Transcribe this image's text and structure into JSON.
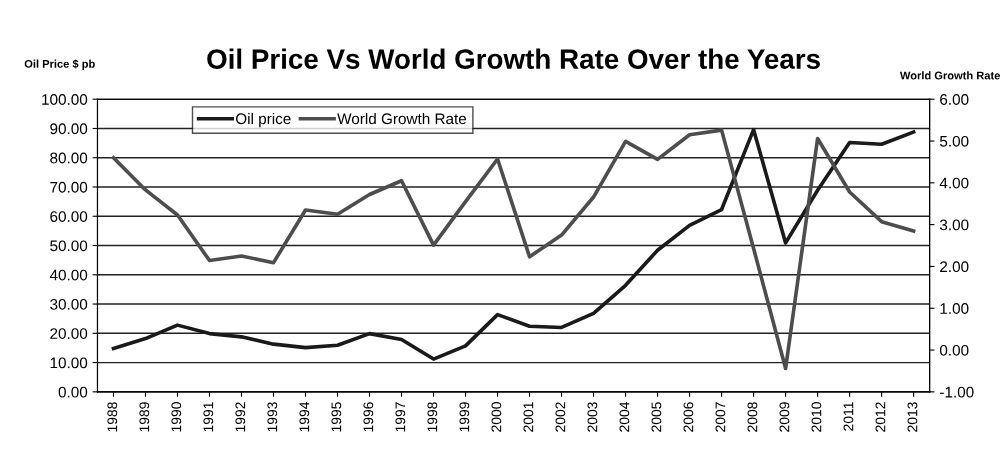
{
  "chart_data": {
    "type": "line",
    "title": "Oil Price Vs World Growth Rate Over the Years",
    "ylabel": "Oil Price $ pb",
    "y2label": "World Growth Rate",
    "categories": [
      "1988",
      "1989",
      "1990",
      "1991",
      "1992",
      "1993",
      "1994",
      "1995",
      "1996",
      "1997",
      "1998",
      "1999",
      "2000",
      "2001",
      "2002",
      "2003",
      "2004",
      "2005",
      "2006",
      "2007",
      "2008",
      "2009",
      "2010",
      "2011",
      "2012",
      "2013"
    ],
    "series": [
      {
        "name": "Oil price",
        "color": "#1a1a1a",
        "values": [
          14.8,
          18.2,
          22.8,
          19.9,
          18.8,
          16.3,
          15.1,
          15.9,
          19.9,
          17.9,
          11.2,
          15.7,
          26.4,
          22.4,
          22.0,
          26.8,
          36.4,
          48.4,
          56.9,
          62.3,
          89.6,
          50.9,
          68.9,
          85.2,
          84.6,
          88.8
        ]
      },
      {
        "name": "World Growth Rate",
        "color": "#4d4d4d",
        "axis": "y2",
        "values": [
          4.6,
          3.83,
          3.23,
          2.14,
          2.25,
          2.09,
          3.35,
          3.25,
          3.72,
          4.05,
          2.51,
          3.55,
          4.57,
          2.23,
          2.75,
          3.66,
          4.99,
          4.56,
          5.15,
          5.26,
          2.43,
          -0.44,
          5.06,
          3.78,
          3.07,
          2.85
        ]
      }
    ],
    "ylim": [
      0,
      100
    ],
    "yticks": [
      {
        "value": 0,
        "label": "0.00"
      },
      {
        "value": 10,
        "label": "10.00"
      },
      {
        "value": 20,
        "label": "20.00"
      },
      {
        "value": 30,
        "label": "30.00"
      },
      {
        "value": 40,
        "label": "40.00"
      },
      {
        "value": 50,
        "label": "50.00"
      },
      {
        "value": 60,
        "label": "60.00"
      },
      {
        "value": 70,
        "label": "70.00"
      },
      {
        "value": 80,
        "label": "80.00"
      },
      {
        "value": 90,
        "label": "90.00"
      },
      {
        "value": 100,
        "label": "100.00"
      }
    ],
    "y2lim": [
      -1,
      6
    ],
    "y2ticks": [
      {
        "value": -1,
        "label": "-1.00"
      },
      {
        "value": 0,
        "label": "0.00"
      },
      {
        "value": 1,
        "label": "1.00"
      },
      {
        "value": 2,
        "label": "2.00"
      },
      {
        "value": 3,
        "label": "3.00"
      },
      {
        "value": 4,
        "label": "4.00"
      },
      {
        "value": 5,
        "label": "5.00"
      },
      {
        "value": 6,
        "label": "6.00"
      }
    ],
    "grid": "y",
    "legend": "top left",
    "marker": "none",
    "line_style": "solid"
  }
}
